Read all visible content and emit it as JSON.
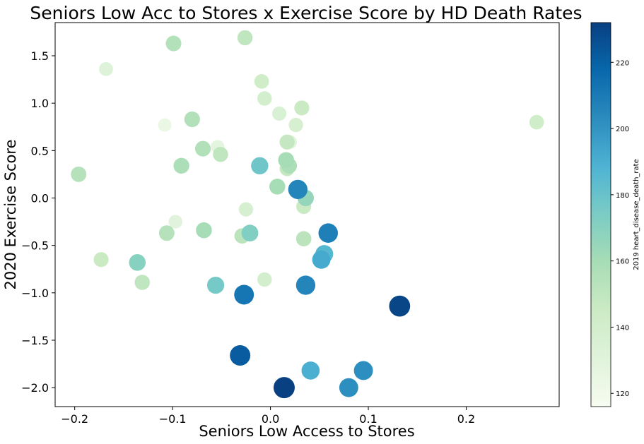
{
  "chart_data": {
    "type": "scatter",
    "title": "Seniors Low Acc to Stores x Exercise Score by HD Death Rates",
    "xlabel": "Seniors Low Access to Stores",
    "ylabel": "2020 Exercise Score",
    "colorbar_label": "2019 heart_disease_death_rate",
    "colormap": "GnBu",
    "xlim": [
      -0.22,
      0.295
    ],
    "ylim": [
      -2.2,
      1.85
    ],
    "clim": [
      116,
      232
    ],
    "x_ticks": [
      -0.2,
      -0.1,
      0.0,
      0.1,
      0.2
    ],
    "x_tick_labels": [
      "−0.2",
      "−0.1",
      "0.0",
      "0.1",
      "0.2"
    ],
    "y_ticks": [
      1.5,
      1.0,
      0.5,
      0.0,
      -0.5,
      -1.0,
      -1.5,
      -2.0
    ],
    "y_tick_labels": [
      "1.5",
      "1.0",
      "0.5",
      "0.0",
      "−0.5",
      "−1.0",
      "−1.5",
      "−2.0"
    ],
    "c_ticks": [
      120,
      140,
      160,
      180,
      200,
      220
    ],
    "c_tick_labels": [
      "120",
      "140",
      "160",
      "180",
      "200",
      "220"
    ],
    "grid": false,
    "points": [
      {
        "x": -0.099,
        "y": 1.63,
        "c": 155
      },
      {
        "x": -0.026,
        "y": 1.69,
        "c": 150
      },
      {
        "x": -0.168,
        "y": 1.36,
        "c": 132
      },
      {
        "x": -0.009,
        "y": 1.23,
        "c": 142
      },
      {
        "x": -0.006,
        "y": 1.05,
        "c": 140
      },
      {
        "x": 0.032,
        "y": 0.95,
        "c": 146
      },
      {
        "x": 0.009,
        "y": 0.89,
        "c": 136
      },
      {
        "x": -0.08,
        "y": 0.83,
        "c": 156
      },
      {
        "x": -0.108,
        "y": 0.77,
        "c": 124
      },
      {
        "x": 0.026,
        "y": 0.77,
        "c": 138
      },
      {
        "x": 0.272,
        "y": 0.8,
        "c": 142
      },
      {
        "x": -0.054,
        "y": 0.54,
        "c": 128
      },
      {
        "x": 0.02,
        "y": 0.59,
        "c": 130
      },
      {
        "x": 0.017,
        "y": 0.59,
        "c": 148
      },
      {
        "x": -0.069,
        "y": 0.52,
        "c": 156
      },
      {
        "x": -0.051,
        "y": 0.46,
        "c": 150
      },
      {
        "x": 0.016,
        "y": 0.4,
        "c": 160
      },
      {
        "x": -0.091,
        "y": 0.34,
        "c": 158
      },
      {
        "x": -0.011,
        "y": 0.34,
        "c": 178
      },
      {
        "x": 0.019,
        "y": 0.34,
        "c": 158
      },
      {
        "x": 0.017,
        "y": 0.31,
        "c": 148
      },
      {
        "x": -0.196,
        "y": 0.25,
        "c": 154
      },
      {
        "x": 0.007,
        "y": 0.12,
        "c": 160
      },
      {
        "x": 0.028,
        "y": 0.09,
        "c": 206
      },
      {
        "x": 0.036,
        "y": 0.0,
        "c": 166
      },
      {
        "x": 0.034,
        "y": -0.09,
        "c": 146
      },
      {
        "x": -0.025,
        "y": -0.12,
        "c": 138
      },
      {
        "x": -0.097,
        "y": -0.25,
        "c": 130
      },
      {
        "x": -0.068,
        "y": -0.34,
        "c": 160
      },
      {
        "x": -0.106,
        "y": -0.37,
        "c": 154
      },
      {
        "x": 0.059,
        "y": -0.37,
        "c": 208
      },
      {
        "x": -0.021,
        "y": -0.37,
        "c": 172
      },
      {
        "x": -0.029,
        "y": -0.4,
        "c": 152
      },
      {
        "x": 0.034,
        "y": -0.43,
        "c": 152
      },
      {
        "x": 0.055,
        "y": -0.59,
        "c": 186
      },
      {
        "x": 0.052,
        "y": -0.65,
        "c": 192
      },
      {
        "x": -0.173,
        "y": -0.65,
        "c": 146
      },
      {
        "x": -0.136,
        "y": -0.68,
        "c": 170
      },
      {
        "x": -0.131,
        "y": -0.89,
        "c": 150
      },
      {
        "x": -0.006,
        "y": -0.86,
        "c": 140
      },
      {
        "x": -0.056,
        "y": -0.92,
        "c": 176
      },
      {
        "x": 0.036,
        "y": -0.92,
        "c": 206
      },
      {
        "x": -0.027,
        "y": -1.02,
        "c": 212
      },
      {
        "x": 0.132,
        "y": -1.14,
        "c": 230
      },
      {
        "x": -0.031,
        "y": -1.66,
        "c": 222
      },
      {
        "x": 0.041,
        "y": -1.82,
        "c": 190
      },
      {
        "x": 0.095,
        "y": -1.82,
        "c": 202
      },
      {
        "x": 0.08,
        "y": -2.0,
        "c": 202
      },
      {
        "x": 0.014,
        "y": -2.0,
        "c": 232
      }
    ]
  }
}
